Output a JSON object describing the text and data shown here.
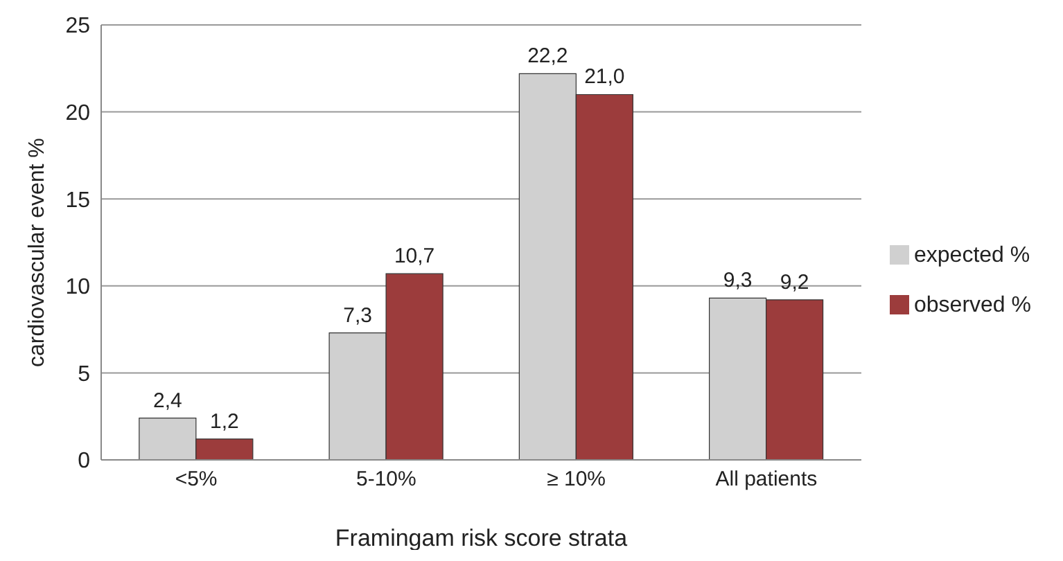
{
  "chart_data": {
    "type": "bar",
    "xlabel": "Framingam risk score strata",
    "ylabel": "cardiovascular event %",
    "categories": [
      "<5%",
      "5-10%",
      "≥ 10%",
      "All patients"
    ],
    "series": [
      {
        "name": "expected %",
        "color": "#d0d0d0",
        "values": [
          2.4,
          7.3,
          22.2,
          9.3
        ],
        "value_labels": [
          "2,4",
          "7,3",
          "22,2",
          "9,3"
        ]
      },
      {
        "name": "observed %",
        "color": "#9c3c3c",
        "values": [
          1.2,
          10.7,
          21.0,
          9.2
        ],
        "value_labels": [
          "1,2",
          "10,7",
          "21,0",
          "9,2"
        ]
      }
    ],
    "ylim": [
      0,
      25
    ],
    "yticks": [
      0,
      5,
      10,
      15,
      20,
      25
    ],
    "grid": "y",
    "legend": "right"
  }
}
